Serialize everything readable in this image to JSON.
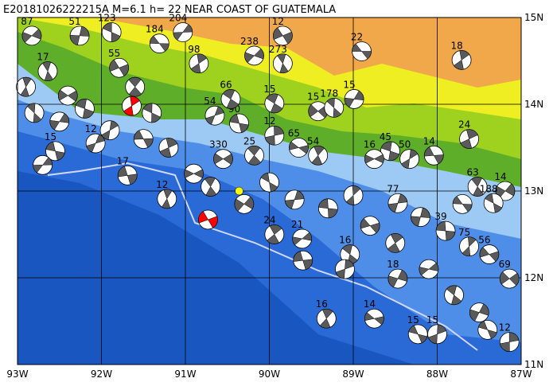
{
  "title": "E20181026222215A M=6.1 h= 22 NEAR COAST OF GUATEMALA",
  "map": {
    "lon_range": [
      -93,
      -87
    ],
    "lat_range": [
      11,
      15
    ],
    "lon_ticks": [
      {
        "value": -93,
        "label": "93W"
      },
      {
        "value": -92,
        "label": "92W"
      },
      {
        "value": -91,
        "label": "91W"
      },
      {
        "value": -90,
        "label": "90W"
      },
      {
        "value": -89,
        "label": "89W"
      },
      {
        "value": -88,
        "label": "88W"
      },
      {
        "value": -87,
        "label": "87W"
      }
    ],
    "lat_ticks": [
      {
        "value": 15,
        "label": "15N"
      },
      {
        "value": 14,
        "label": "14N"
      },
      {
        "value": 13,
        "label": "13N"
      },
      {
        "value": 12,
        "label": "12N"
      },
      {
        "value": 11,
        "label": "11N"
      }
    ],
    "events": [
      {
        "lon": -88.9,
        "lat": 14.61,
        "depth": "22"
      },
      {
        "lon": -87.71,
        "lat": 14.51,
        "depth": "18"
      },
      {
        "lon": -89.84,
        "lat": 14.79,
        "depth": "12"
      },
      {
        "lon": -89.84,
        "lat": 14.47,
        "depth": "273"
      },
      {
        "lon": -90.18,
        "lat": 14.56,
        "depth": "238"
      },
      {
        "lon": -89.94,
        "lat": 14.01,
        "depth": "15"
      },
      {
        "lon": -90.65,
        "lat": 13.87,
        "depth": "54"
      },
      {
        "lon": -90.36,
        "lat": 13.78,
        "depth": "90"
      },
      {
        "lon": -89.94,
        "lat": 13.64,
        "depth": "12"
      },
      {
        "lon": -89.65,
        "lat": 13.5,
        "depth": "65"
      },
      {
        "lon": -89.42,
        "lat": 13.41,
        "depth": "54"
      },
      {
        "lon": -89.42,
        "lat": 13.92,
        "depth": "15"
      },
      {
        "lon": -89.23,
        "lat": 13.96,
        "depth": "178"
      },
      {
        "lon": -88.99,
        "lat": 14.06,
        "depth": "15"
      },
      {
        "lon": -88.56,
        "lat": 13.46,
        "depth": "45"
      },
      {
        "lon": -88.33,
        "lat": 13.37,
        "depth": "50"
      },
      {
        "lon": -88.04,
        "lat": 13.41,
        "depth": "14"
      },
      {
        "lon": -87.62,
        "lat": 13.6,
        "depth": "24"
      },
      {
        "lon": -88.75,
        "lat": 13.37,
        "depth": "16"
      },
      {
        "lon": -87.52,
        "lat": 13.05,
        "depth": "63"
      },
      {
        "lon": -87.19,
        "lat": 13.0,
        "depth": "14"
      },
      {
        "lon": -87.33,
        "lat": 12.86,
        "depth": "188"
      },
      {
        "lon": -88.47,
        "lat": 12.86,
        "depth": "77"
      },
      {
        "lon": -87.9,
        "lat": 12.54,
        "depth": "39"
      },
      {
        "lon": -87.62,
        "lat": 12.36,
        "depth": "75"
      },
      {
        "lon": -87.38,
        "lat": 12.27,
        "depth": "56"
      },
      {
        "lon": -89.94,
        "lat": 12.5,
        "depth": "24"
      },
      {
        "lon": -89.61,
        "lat": 12.45,
        "depth": "21"
      },
      {
        "lon": -89.04,
        "lat": 12.27,
        "depth": "16"
      },
      {
        "lon": -88.47,
        "lat": 11.99,
        "depth": "18"
      },
      {
        "lon": -88.23,
        "lat": 11.35,
        "depth": "15"
      },
      {
        "lon": -88.0,
        "lat": 11.35,
        "depth": "15"
      },
      {
        "lon": -91.69,
        "lat": 13.18,
        "depth": "17"
      },
      {
        "lon": -91.22,
        "lat": 12.91,
        "depth": "12"
      },
      {
        "lon": -90.55,
        "lat": 13.37,
        "depth": "330"
      },
      {
        "lon": -90.18,
        "lat": 13.41,
        "depth": "25"
      },
      {
        "lon": -91.03,
        "lat": 14.83,
        "depth": "204"
      },
      {
        "lon": -91.88,
        "lat": 14.83,
        "depth": "123"
      },
      {
        "lon": -92.26,
        "lat": 14.79,
        "depth": "51"
      },
      {
        "lon": -91.31,
        "lat": 14.7,
        "depth": "184"
      },
      {
        "lon": -90.84,
        "lat": 14.47,
        "depth": "98"
      },
      {
        "lon": -91.79,
        "lat": 14.42,
        "depth": "55"
      },
      {
        "lon": -92.64,
        "lat": 14.38,
        "depth": "17"
      },
      {
        "lon": -92.83,
        "lat": 14.79,
        "depth": "87"
      },
      {
        "lon": -90.46,
        "lat": 14.06,
        "depth": "66"
      },
      {
        "lon": -92.07,
        "lat": 13.55,
        "depth": "12"
      },
      {
        "lon": -92.55,
        "lat": 13.46,
        "depth": "15"
      },
      {
        "lon": -87.14,
        "lat": 11.26,
        "depth": "12"
      },
      {
        "lon": -88.75,
        "lat": 11.53,
        "depth": "14"
      },
      {
        "lon": -89.32,
        "lat": 11.53,
        "depth": "16"
      },
      {
        "lon": -87.14,
        "lat": 11.99,
        "depth": "69"
      },
      {
        "lon": -92.8,
        "lat": 13.9
      },
      {
        "lon": -92.5,
        "lat": 13.8
      },
      {
        "lon": -92.2,
        "lat": 13.95
      },
      {
        "lon": -91.9,
        "lat": 13.7
      },
      {
        "lon": -91.5,
        "lat": 13.6
      },
      {
        "lon": -91.2,
        "lat": 13.5
      },
      {
        "lon": -90.9,
        "lat": 13.2
      },
      {
        "lon": -90.7,
        "lat": 13.05
      },
      {
        "lon": -90.3,
        "lat": 12.85
      },
      {
        "lon": -90.0,
        "lat": 13.1
      },
      {
        "lon": -89.7,
        "lat": 12.9
      },
      {
        "lon": -89.3,
        "lat": 12.8
      },
      {
        "lon": -89.0,
        "lat": 12.95
      },
      {
        "lon": -88.8,
        "lat": 12.6
      },
      {
        "lon": -88.5,
        "lat": 12.4
      },
      {
        "lon": -88.1,
        "lat": 12.1
      },
      {
        "lon": -87.8,
        "lat": 11.8
      },
      {
        "lon": -87.5,
        "lat": 11.6
      },
      {
        "lon": -87.4,
        "lat": 11.4
      },
      {
        "lon": -89.1,
        "lat": 12.1
      },
      {
        "lon": -89.6,
        "lat": 12.2
      },
      {
        "lon": -92.9,
        "lat": 14.2
      },
      {
        "lon": -92.4,
        "lat": 14.1
      },
      {
        "lon": -91.6,
        "lat": 14.2
      },
      {
        "lon": -92.7,
        "lat": 13.3
      },
      {
        "lon": -91.4,
        "lat": 13.9
      },
      {
        "lon": -88.2,
        "lat": 12.7
      },
      {
        "lon": -87.7,
        "lat": 12.85
      },
      {
        "lon": -91.64,
        "lat": 13.98,
        "color": "#ff0000"
      },
      {
        "lon": -90.73,
        "lat": 12.67,
        "color": "#ff0000"
      }
    ],
    "epicenter": {
      "lon": -90.36,
      "lat": 13.0,
      "color": "#ffff00"
    }
  }
}
